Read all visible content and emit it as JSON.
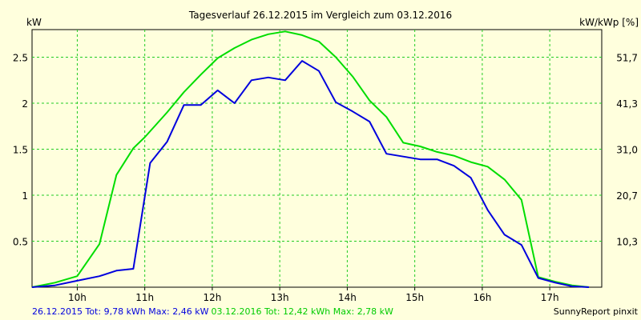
{
  "chart_data": {
    "type": "line",
    "title": "Tagesverlauf 26.12.2015 im Vergleich zum 03.12.2016",
    "ylabel_left": "kW",
    "ylabel_right": "kW/kWp [%]",
    "x_ticks": [
      "10h",
      "11h",
      "12h",
      "13h",
      "14h",
      "15h",
      "16h",
      "17h"
    ],
    "y_ticks": [
      "0.5",
      "1",
      "1.5",
      "2",
      "2.5"
    ],
    "y_ticks_right": [
      "10,3",
      "20,7",
      "31,0",
      "41,3",
      "51,7"
    ],
    "xlim": [
      9.33,
      17.77
    ],
    "ylim": [
      0,
      2.8
    ],
    "grid": true,
    "series": [
      {
        "name": "26.12.2015",
        "color": "#0000dd",
        "x": [
          9.33,
          9.67,
          10.0,
          10.33,
          10.58,
          10.83,
          11.08,
          11.33,
          11.58,
          11.83,
          12.08,
          12.33,
          12.58,
          12.83,
          13.08,
          13.33,
          13.58,
          13.83,
          14.08,
          14.33,
          14.58,
          14.83,
          15.08,
          15.33,
          15.58,
          15.83,
          16.08,
          16.33,
          16.58,
          16.83,
          17.08,
          17.33,
          17.58
        ],
        "y": [
          0.0,
          0.02,
          0.07,
          0.12,
          0.18,
          0.2,
          1.35,
          1.58,
          1.98,
          1.98,
          2.14,
          2.0,
          2.25,
          2.28,
          2.25,
          2.46,
          2.35,
          2.01,
          1.91,
          1.8,
          1.45,
          1.42,
          1.39,
          1.39,
          1.32,
          1.19,
          0.84,
          0.57,
          0.46,
          0.1,
          0.05,
          0.01,
          0.0
        ]
      },
      {
        "name": "03.12.2016",
        "color": "#00dd00",
        "x": [
          9.33,
          9.67,
          10.0,
          10.33,
          10.58,
          10.83,
          11.0,
          11.33,
          11.58,
          11.83,
          12.08,
          12.33,
          12.58,
          12.83,
          13.08,
          13.33,
          13.58,
          13.83,
          14.08,
          14.33,
          14.58,
          14.83,
          15.08,
          15.33,
          15.58,
          15.83,
          16.08,
          16.33,
          16.58,
          16.83,
          17.08,
          17.33,
          17.58
        ],
        "y": [
          0.0,
          0.05,
          0.12,
          0.47,
          1.22,
          1.51,
          1.63,
          1.9,
          2.12,
          2.31,
          2.49,
          2.6,
          2.69,
          2.75,
          2.78,
          2.74,
          2.67,
          2.5,
          2.29,
          2.03,
          1.85,
          1.57,
          1.53,
          1.47,
          1.43,
          1.36,
          1.31,
          1.17,
          0.95,
          0.11,
          0.06,
          0.02,
          0.0
        ]
      }
    ],
    "footer_blue": "26.12.2015 Tot: 9,78 kWh Max: 2,46 kW",
    "footer_green": "03.12.2016 Tot: 12,42 kWh Max: 2,78 kW",
    "credit": "SunnyReport pinxit",
    "colors": {
      "background": "#ffffdd",
      "plot_background": "#ffffdd",
      "grid": "#22cc22",
      "blue_series": "#0000dd",
      "green_series": "#00dd00"
    }
  }
}
